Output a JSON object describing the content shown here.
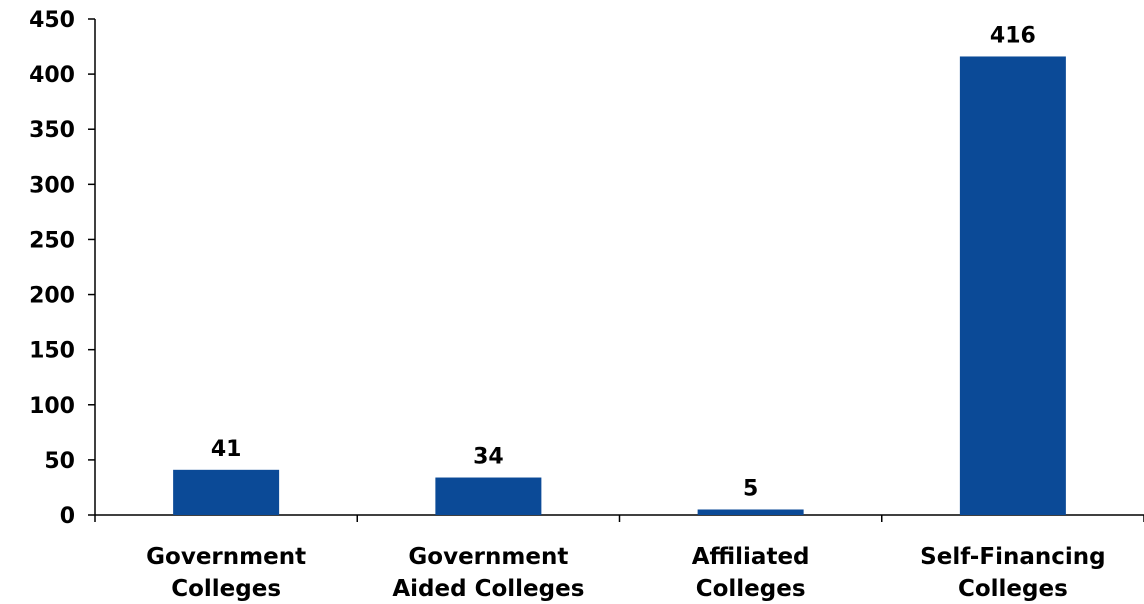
{
  "chart_data": {
    "type": "bar",
    "title": "",
    "xlabel": "",
    "ylabel": "",
    "categories": [
      [
        "Government",
        "Colleges"
      ],
      [
        "Government",
        "Aided Colleges"
      ],
      [
        "Affiliated",
        "Colleges"
      ],
      [
        "Self-Financing",
        "Colleges"
      ]
    ],
    "values": [
      41,
      34,
      5,
      416
    ],
    "data_labels": [
      "41",
      "34",
      "5",
      "416"
    ],
    "ylim": [
      0,
      450
    ],
    "yticks": [
      0,
      50,
      100,
      150,
      200,
      250,
      300,
      350,
      400,
      450
    ],
    "ytick_labels": [
      "0",
      "50",
      "100",
      "150",
      "200",
      "250",
      "300",
      "350",
      "400",
      "450"
    ],
    "grid": false,
    "legend": "none",
    "bar_color": "#0b4a97",
    "axis_color": "#000000"
  }
}
